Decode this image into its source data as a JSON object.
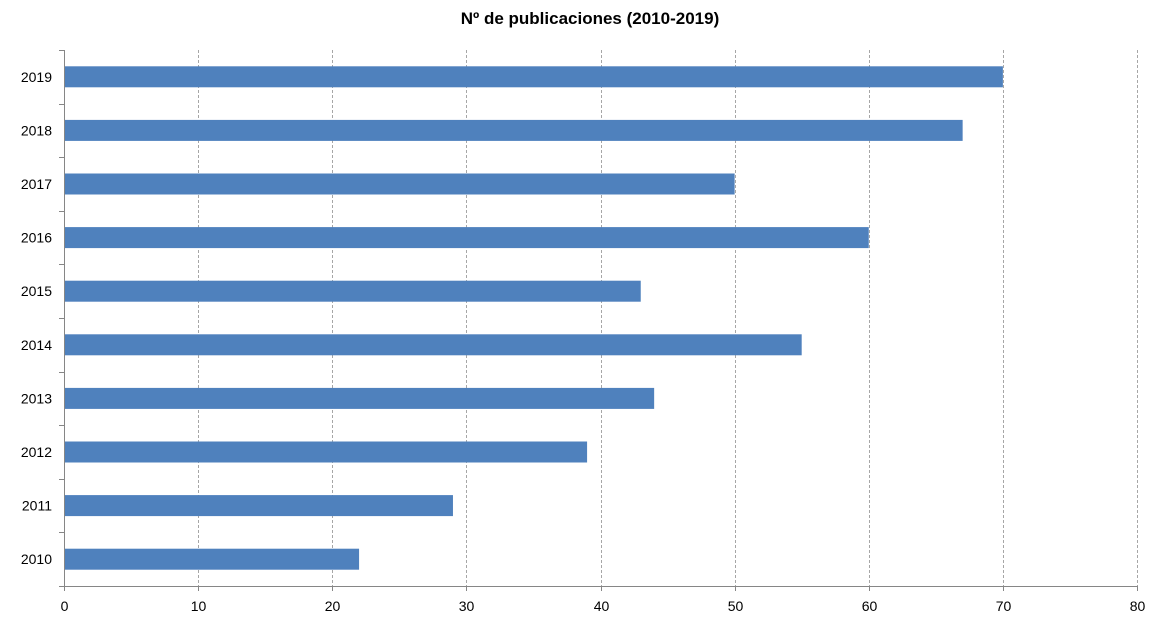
{
  "chart_data": {
    "type": "bar",
    "orientation": "horizontal",
    "title": "Nº de publicaciones (2010-2019)",
    "xlabel": "",
    "ylabel": "",
    "categories": [
      "2010",
      "2011",
      "2012",
      "2013",
      "2014",
      "2015",
      "2016",
      "2017",
      "2018",
      "2019"
    ],
    "values": [
      22,
      29,
      39,
      44,
      55,
      43,
      60,
      50,
      67,
      70
    ],
    "xlim": [
      0,
      80
    ],
    "x_ticks": [
      "0",
      "10",
      "20",
      "30",
      "40",
      "50",
      "60",
      "70",
      "80"
    ],
    "grid": "vertical, dashed",
    "legend": "none",
    "colors": {
      "bar": "#4f81bd",
      "grid": "#a6a6a6",
      "axis": "#868686"
    }
  }
}
